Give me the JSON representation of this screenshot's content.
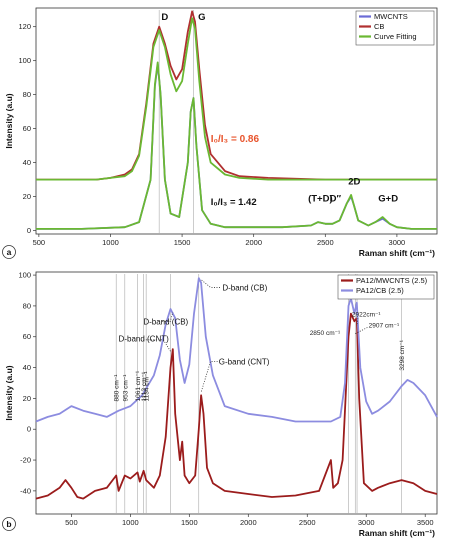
{
  "chart_data": [
    {
      "panel": "(a)",
      "type": "line",
      "xlabel": "Raman shift (cm⁻¹)",
      "ylabel": "Intensity (a.u)",
      "xlim": [
        480,
        3280
      ],
      "ylim": [
        -2,
        131
      ],
      "xticks": [
        500,
        1000,
        1500,
        2000,
        2500,
        3000
      ],
      "yticks": [
        0,
        20,
        40,
        60,
        80,
        100,
        120
      ],
      "grid": false,
      "legend_position": "top-right",
      "series": [
        {
          "name": "MWCNTS",
          "color": "#6b6bd6",
          "x": [
            480,
            800,
            1100,
            1200,
            1280,
            1310,
            1330,
            1350,
            1380,
            1420,
            1480,
            1540,
            1560,
            1580,
            1600,
            1640,
            1700,
            1800,
            2000,
            2200,
            2400,
            2450,
            2500,
            2550,
            2600,
            2650,
            2680,
            2700,
            2730,
            2800,
            2850,
            2900,
            2950,
            3000,
            3100,
            3280
          ],
          "y": [
            1,
            1,
            2,
            5,
            30,
            85,
            98,
            80,
            30,
            10,
            8,
            40,
            70,
            78,
            50,
            12,
            4,
            2,
            2,
            2,
            3,
            5,
            4,
            4,
            6,
            16,
            20,
            15,
            6,
            3,
            5,
            7,
            4,
            2,
            1,
            1
          ]
        },
        {
          "name": "CB",
          "color": "#b03030",
          "x": [
            480,
            900,
            1000,
            1100,
            1150,
            1200,
            1250,
            1300,
            1340,
            1380,
            1420,
            1460,
            1500,
            1540,
            1570,
            1590,
            1620,
            1660,
            1700,
            1800,
            1900,
            2100,
            2500,
            2700,
            3000,
            3280
          ],
          "y": [
            30,
            30,
            31,
            33,
            36,
            45,
            75,
            110,
            120,
            110,
            97,
            89,
            95,
            117,
            129,
            123,
            95,
            62,
            45,
            35,
            32,
            31,
            30,
            30,
            30,
            30
          ]
        },
        {
          "name": "Curve Fitting",
          "color": "#6ab832",
          "x": [
            480,
            900,
            1000,
            1100,
            1150,
            1200,
            1250,
            1300,
            1340,
            1380,
            1420,
            1460,
            1500,
            1540,
            1570,
            1590,
            1620,
            1660,
            1700,
            1800,
            1900,
            2100,
            2500,
            2700,
            3000,
            3280
          ],
          "y": [
            30,
            30,
            31,
            32,
            35,
            44,
            73,
            108,
            118,
            108,
            92,
            82,
            88,
            110,
            125,
            119,
            88,
            55,
            40,
            33,
            31,
            30,
            30,
            30,
            30,
            30
          ]
        },
        {
          "name": "",
          "color": "#6ab832",
          "x": [
            480,
            800,
            1100,
            1200,
            1280,
            1310,
            1330,
            1350,
            1380,
            1420,
            1480,
            1540,
            1560,
            1580,
            1600,
            1640,
            1700,
            1800,
            2000,
            2200,
            2400,
            2450,
            2500,
            2550,
            2600,
            2650,
            2680,
            2700,
            2730,
            2800,
            2850,
            2900,
            2950,
            3000,
            3100,
            3280
          ],
          "y": [
            1,
            1,
            2,
            5,
            30,
            86,
            99,
            80,
            30,
            10,
            8,
            40,
            70,
            78,
            50,
            12,
            4,
            2,
            2,
            2,
            3,
            5,
            4,
            4,
            6,
            16,
            21,
            15,
            6,
            3,
            5,
            8,
            4,
            2,
            1,
            1
          ]
        }
      ],
      "vlines": [
        1340,
        1580
      ],
      "annotations": [
        {
          "text": "D",
          "x": 1355,
          "y": 124
        },
        {
          "text": "G",
          "x": 1612,
          "y": 124
        },
        {
          "text": "I₀/I₃ = 0.86",
          "x": 1700,
          "y": 52
        },
        {
          "text": "I₀/I₃ = 1.42",
          "x": 1700,
          "y": 15
        },
        {
          "text": "(T+D)",
          "x": 2380,
          "y": 17
        },
        {
          "text": "D″",
          "x": 2530,
          "y": 17
        },
        {
          "text": "2D",
          "x": 2660,
          "y": 27
        },
        {
          "text": "G+D",
          "x": 2870,
          "y": 17
        }
      ]
    },
    {
      "panel": "(b)",
      "type": "line",
      "xlabel": "Raman shift (cm⁻¹)",
      "ylabel": "Intensity (a.u)",
      "xlim": [
        200,
        3600
      ],
      "ylim": [
        -55,
        102
      ],
      "xticks": [
        500,
        1000,
        1500,
        2000,
        2500,
        3000,
        3500
      ],
      "yticks": [
        -40,
        -20,
        0,
        20,
        40,
        60,
        80,
        100
      ],
      "grid": false,
      "legend_position": "top-right",
      "series": [
        {
          "name": "PA12/MWCNTS (2.5)",
          "color": "#9b1c1c",
          "x": [
            200,
            300,
            400,
            450,
            500,
            550,
            600,
            700,
            800,
            880,
            900,
            953,
            1000,
            1061,
            1080,
            1112,
            1134,
            1200,
            1250,
            1300,
            1340,
            1360,
            1380,
            1420,
            1440,
            1460,
            1500,
            1550,
            1580,
            1600,
            1620,
            1650,
            1700,
            1800,
            2000,
            2200,
            2400,
            2600,
            2650,
            2700,
            2720,
            2760,
            2800,
            2850,
            2870,
            2900,
            2920,
            2940,
            2980,
            3050,
            3100,
            3200,
            3300,
            3400,
            3500,
            3600
          ],
          "y": [
            -45,
            -43,
            -38,
            -33,
            -38,
            -44,
            -45,
            -40,
            -38,
            -30,
            -40,
            -30,
            -32,
            -28,
            -34,
            -27,
            -33,
            -38,
            -30,
            -5,
            40,
            52,
            10,
            -20,
            -8,
            -30,
            -35,
            -30,
            0,
            22,
            10,
            -25,
            -35,
            -40,
            -42,
            -44,
            -43,
            -40,
            -30,
            -20,
            -38,
            -35,
            -20,
            60,
            75,
            70,
            72,
            20,
            -35,
            -40,
            -38,
            -35,
            -33,
            -35,
            -40,
            -42
          ]
        },
        {
          "name": "PA12/CB (2.5)",
          "color": "#8c8ce0",
          "x": [
            200,
            300,
            400,
            500,
            600,
            700,
            800,
            900,
            1000,
            1100,
            1200,
            1250,
            1300,
            1340,
            1380,
            1420,
            1460,
            1500,
            1540,
            1580,
            1600,
            1640,
            1700,
            1800,
            2000,
            2200,
            2400,
            2600,
            2700,
            2780,
            2820,
            2850,
            2870,
            2900,
            2920,
            2950,
            3000,
            3050,
            3100,
            3200,
            3300,
            3350,
            3400,
            3500,
            3600
          ],
          "y": [
            5,
            8,
            10,
            15,
            12,
            10,
            8,
            12,
            15,
            22,
            35,
            48,
            68,
            78,
            72,
            45,
            30,
            42,
            75,
            98,
            95,
            60,
            35,
            15,
            10,
            8,
            5,
            5,
            5,
            8,
            30,
            80,
            85,
            75,
            82,
            40,
            18,
            10,
            12,
            18,
            28,
            32,
            30,
            22,
            8
          ]
        }
      ],
      "vlines": [
        880,
        953,
        1061,
        1112,
        1134,
        1340,
        1580,
        2850,
        2907,
        2922,
        3298
      ],
      "annotations": [
        {
          "text": "880 cm⁻¹",
          "x": 880
        },
        {
          "text": "953 cm⁻¹",
          "x": 953
        },
        {
          "text": "1061 cm⁻¹",
          "x": 1061
        },
        {
          "text": "1112 cm⁻¹",
          "x": 1112
        },
        {
          "text": "1134 cm⁻¹",
          "x": 1134
        },
        {
          "text": "D-band (CB)",
          "x": 1110,
          "y": 68
        },
        {
          "text": "D-band (CNT)",
          "x": 900,
          "y": 57
        },
        {
          "text": "D-band (CB)",
          "x": 1780,
          "y": 90
        },
        {
          "text": "G-band (CNT)",
          "x": 1750,
          "y": 42
        },
        {
          "text": "2850 cm⁻¹",
          "x": 2650,
          "y": 61
        },
        {
          "text": "2922cm⁻¹",
          "x": 3000,
          "y": 73
        },
        {
          "text": "2907 cm⁻¹",
          "x": 3020,
          "y": 66
        },
        {
          "text": "3298 cm⁻¹",
          "x": 3298
        }
      ]
    }
  ],
  "panel_labels": {
    "a": "a",
    "b": "b"
  }
}
